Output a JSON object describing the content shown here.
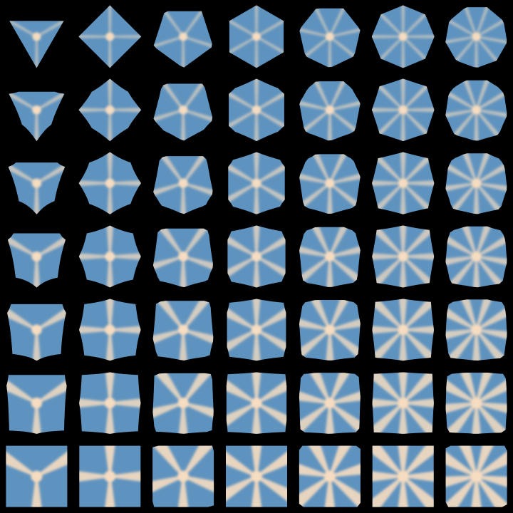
{
  "grid": {
    "columns_sides": [
      3,
      4,
      5,
      6,
      7,
      8,
      9
    ],
    "rows_count": 7,
    "colors": {
      "background": "#000000",
      "edge": "#5f93bf",
      "ridge": "#f6dcc0"
    }
  }
}
